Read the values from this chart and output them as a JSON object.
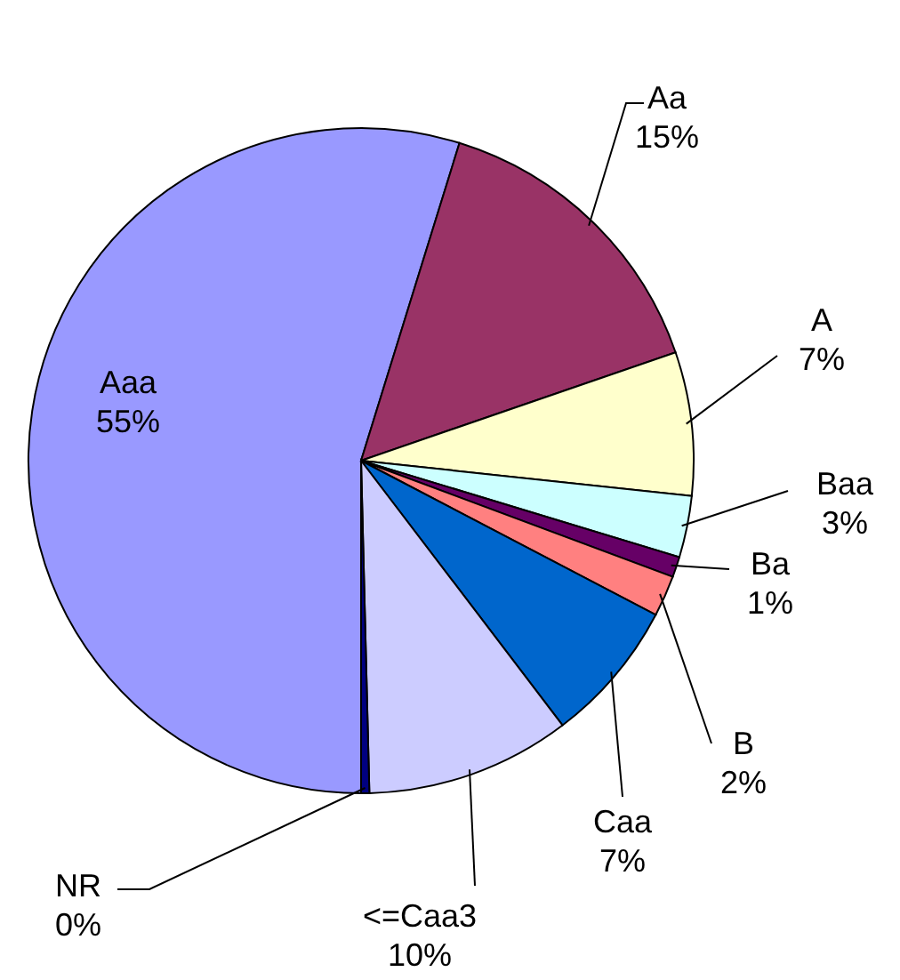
{
  "chart_data": {
    "type": "pie",
    "categories": [
      "Aaa",
      "Aa",
      "A",
      "Baa",
      "Ba",
      "B",
      "Caa",
      "<=Caa3",
      "NR"
    ],
    "values": [
      55,
      15,
      7,
      3,
      1,
      2,
      7,
      10,
      0.4
    ],
    "value_labels": [
      "55%",
      "15%",
      "7%",
      "3%",
      "1%",
      "2%",
      "7%",
      "10%",
      "0%"
    ],
    "colors": [
      "#9999ff",
      "#993366",
      "#ffffcc",
      "#ccffff",
      "#660066",
      "#ff8080",
      "#0066cc",
      "#ccccff",
      "#000080"
    ]
  }
}
